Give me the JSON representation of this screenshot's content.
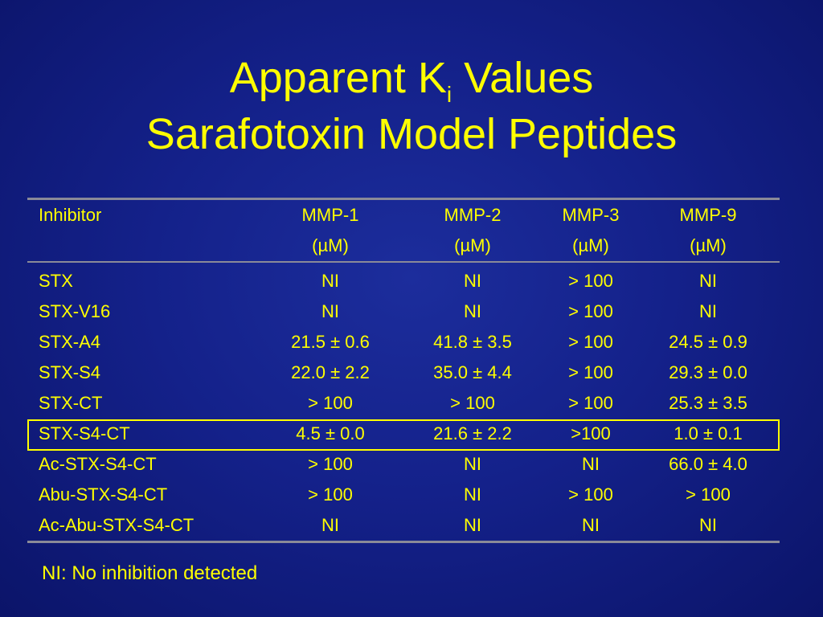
{
  "title": {
    "line1_main": "Apparent K",
    "line1_sub": "i",
    "line1_end": " Values",
    "line2": "Sarafotoxin Model Peptides"
  },
  "table": {
    "headers": [
      {
        "line1": "Inhibitor",
        "line2": ""
      },
      {
        "line1": "MMP-1",
        "line2": "(µM)"
      },
      {
        "line1": "MMP-2",
        "line2": "(µM)"
      },
      {
        "line1": "MMP-3",
        "line2": "(µM)"
      },
      {
        "line1": "MMP-9",
        "line2": "(µM)"
      }
    ],
    "rows": [
      [
        "STX",
        "NI",
        "NI",
        "> 100",
        "NI"
      ],
      [
        "STX-V16",
        "NI",
        "NI",
        "> 100",
        "NI"
      ],
      [
        "STX-A4",
        "21.5 ± 0.6",
        "41.8 ± 3.5",
        "> 100",
        "24.5 ± 0.9"
      ],
      [
        "STX-S4",
        "22.0 ± 2.2",
        "35.0 ± 4.4",
        "> 100",
        "29.3 ± 0.0"
      ],
      [
        "STX-CT",
        "> 100",
        "> 100",
        "> 100",
        "25.3 ± 3.5"
      ],
      [
        "STX-S4-CT",
        "4.5 ± 0.0",
        "21.6 ± 2.2",
        ">100",
        "1.0 ± 0.1"
      ],
      [
        "Ac-STX-S4-CT",
        "> 100",
        "NI",
        "NI",
        "66.0 ± 4.0"
      ],
      [
        "Abu-STX-S4-CT",
        "> 100",
        "NI",
        "> 100",
        "> 100"
      ],
      [
        "Ac-Abu-STX-S4-CT",
        "NI",
        "NI",
        "NI",
        "NI"
      ]
    ],
    "highlighted_row": "STX-S4-CT"
  },
  "footnote": "NI: No inhibition detected",
  "colors": {
    "text": "#ffff00",
    "background": "#14218a",
    "rules": "#8a8a98"
  }
}
